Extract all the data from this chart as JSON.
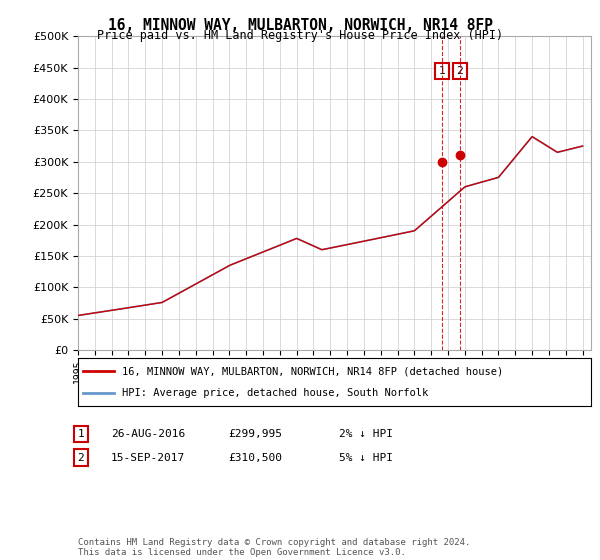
{
  "title": "16, MINNOW WAY, MULBARTON, NORWICH, NR14 8FP",
  "subtitle": "Price paid vs. HM Land Registry's House Price Index (HPI)",
  "ylim": [
    0,
    500000
  ],
  "xlim_start": 1995.0,
  "xlim_end": 2025.5,
  "sale1_date": 2016.65,
  "sale1_price": 299995,
  "sale2_date": 2017.71,
  "sale2_price": 310500,
  "hpi_color": "#6699cc",
  "price_color": "#cc0000",
  "vline_color": "#cc0000",
  "legend_label1": "16, MINNOW WAY, MULBARTON, NORWICH, NR14 8FP (detached house)",
  "legend_label2": "HPI: Average price, detached house, South Norfolk",
  "footer": "Contains HM Land Registry data © Crown copyright and database right 2024.\nThis data is licensed under the Open Government Licence v3.0.",
  "background_color": "#ffffff",
  "grid_color": "#cccccc",
  "hpi_breakpoints": [
    1995,
    2000,
    2004,
    2008,
    2009.5,
    2015,
    2018,
    2020,
    2022,
    2023.5,
    2025
  ],
  "hpi_base_values": [
    55000,
    76000,
    135000,
    178000,
    160000,
    190000,
    260000,
    275000,
    340000,
    315000,
    325000
  ]
}
